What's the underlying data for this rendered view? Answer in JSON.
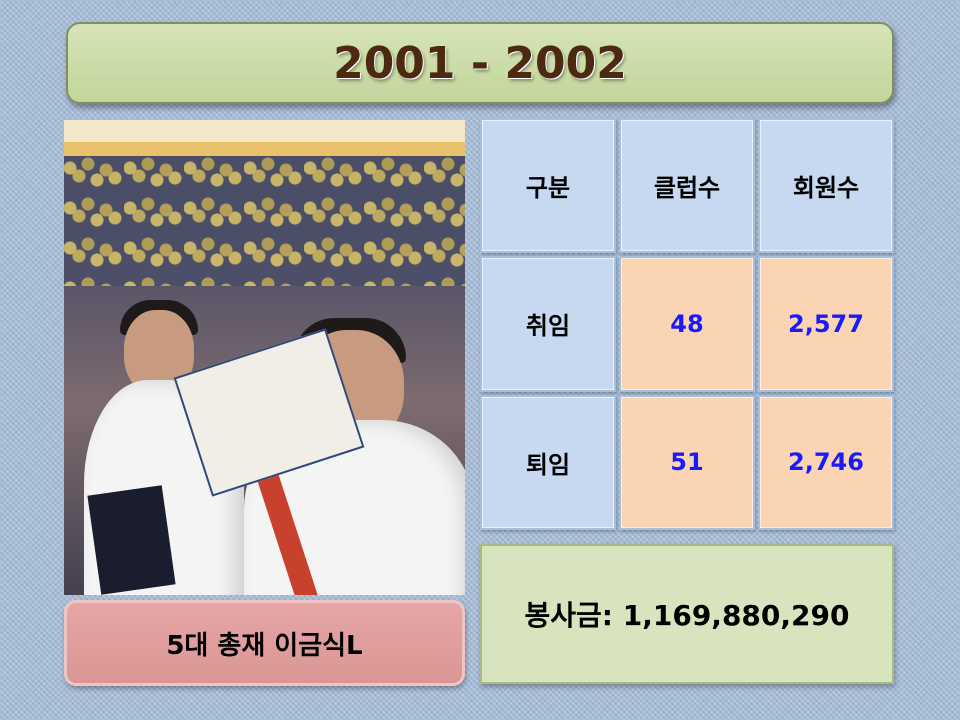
{
  "slide": {
    "title": "2001 - 2002"
  },
  "photo": {
    "alt": "5대 총재 이금식L 선서 사진"
  },
  "table": {
    "headers": [
      "구분",
      "클럽수",
      "회원수"
    ],
    "rows": [
      {
        "label": "취임",
        "clubs": "48",
        "members": "2,577"
      },
      {
        "label": "퇴임",
        "clubs": "51",
        "members": "2,746"
      }
    ]
  },
  "caption": {
    "text": "5대 총재 이금식L"
  },
  "service": {
    "text": "봉사금: 1,169,880,290"
  },
  "colors": {
    "title_bg": "#c2d69b",
    "title_text": "#4b2a10",
    "header_cell": "#c6d9f0",
    "value_cell": "#fbd4b4",
    "value_text": "#1a1aff",
    "caption_bg": "#d99694",
    "service_bg": "#d7e4bd"
  }
}
